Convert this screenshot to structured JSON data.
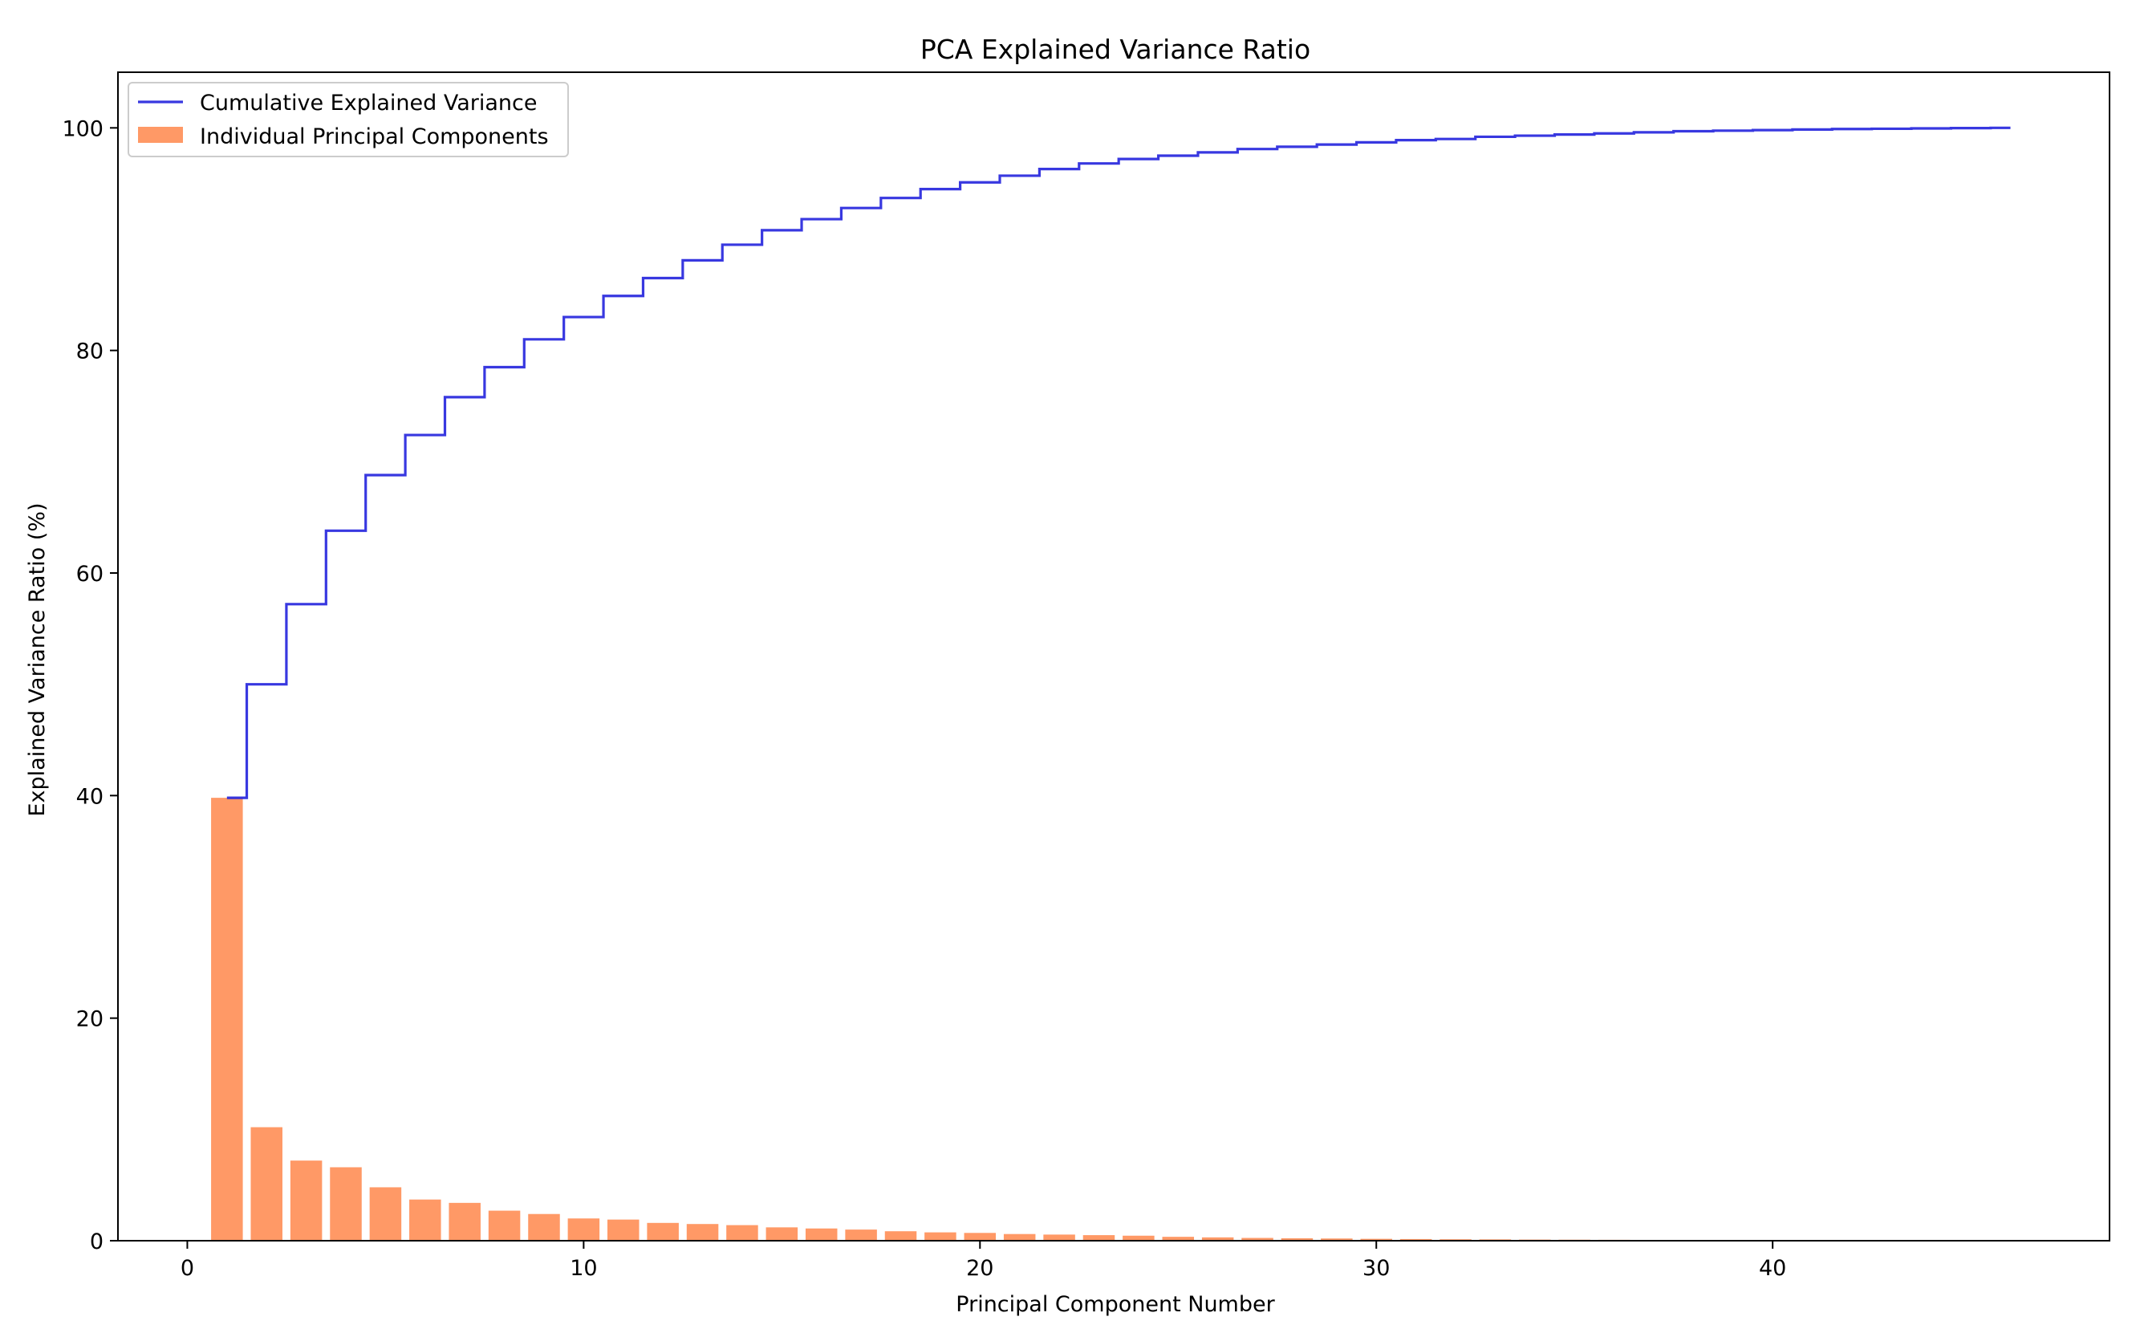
{
  "chart_data": {
    "type": "bar",
    "title": "PCA Explained Variance Ratio",
    "xlabel": "Principal Component Number",
    "ylabel": "Explained Variance Ratio (%)",
    "xlim": [
      -1.75,
      48.5
    ],
    "ylim": [
      0,
      105
    ],
    "xticks": [
      0,
      10,
      20,
      30,
      40
    ],
    "yticks": [
      0,
      20,
      40,
      60,
      80,
      100
    ],
    "grid": false,
    "legend_position": "top-left",
    "colors": {
      "bar": "#ff9966",
      "line": "#2222dd"
    },
    "legend": [
      "Cumulative Explained Variance",
      "Individual Principal Components"
    ],
    "series": [
      {
        "name": "Individual Principal Components",
        "type": "bar",
        "x": [
          1,
          2,
          3,
          4,
          5,
          6,
          7,
          8,
          9,
          10,
          11,
          12,
          13,
          14,
          15,
          16,
          17,
          18,
          19,
          20,
          21,
          22,
          23,
          24,
          25,
          26,
          27,
          28,
          29,
          30,
          31,
          32,
          33,
          34,
          35,
          36,
          37,
          38,
          39,
          40,
          41,
          42,
          43,
          44,
          45,
          46
        ],
        "values": [
          39.8,
          10.2,
          7.2,
          6.6,
          4.8,
          3.7,
          3.4,
          2.7,
          2.4,
          2.0,
          1.9,
          1.6,
          1.5,
          1.4,
          1.2,
          1.1,
          1.0,
          0.85,
          0.75,
          0.7,
          0.6,
          0.55,
          0.5,
          0.45,
          0.35,
          0.3,
          0.25,
          0.22,
          0.2,
          0.17,
          0.15,
          0.13,
          0.12,
          0.1,
          0.09,
          0.08,
          0.07,
          0.06,
          0.05,
          0.05,
          0.04,
          0.03,
          0.03,
          0.02,
          0.02,
          0.01
        ]
      },
      {
        "name": "Cumulative Explained Variance",
        "type": "line",
        "x": [
          1,
          2,
          3,
          4,
          5,
          6,
          7,
          8,
          9,
          10,
          11,
          12,
          13,
          14,
          15,
          16,
          17,
          18,
          19,
          20,
          21,
          22,
          23,
          24,
          25,
          26,
          27,
          28,
          29,
          30,
          31,
          32,
          33,
          34,
          35,
          36,
          37,
          38,
          39,
          40,
          41,
          42,
          43,
          44,
          45,
          46
        ],
        "values": [
          39.8,
          50.0,
          57.2,
          63.8,
          68.8,
          72.4,
          75.8,
          78.5,
          81.0,
          83.0,
          84.9,
          86.5,
          88.1,
          89.5,
          90.8,
          91.8,
          92.8,
          93.7,
          94.5,
          95.1,
          95.7,
          96.3,
          96.8,
          97.2,
          97.5,
          97.8,
          98.1,
          98.3,
          98.5,
          98.7,
          98.9,
          99.0,
          99.2,
          99.3,
          99.4,
          99.5,
          99.6,
          99.7,
          99.75,
          99.8,
          99.85,
          99.9,
          99.92,
          99.95,
          99.98,
          100.0
        ]
      }
    ]
  }
}
